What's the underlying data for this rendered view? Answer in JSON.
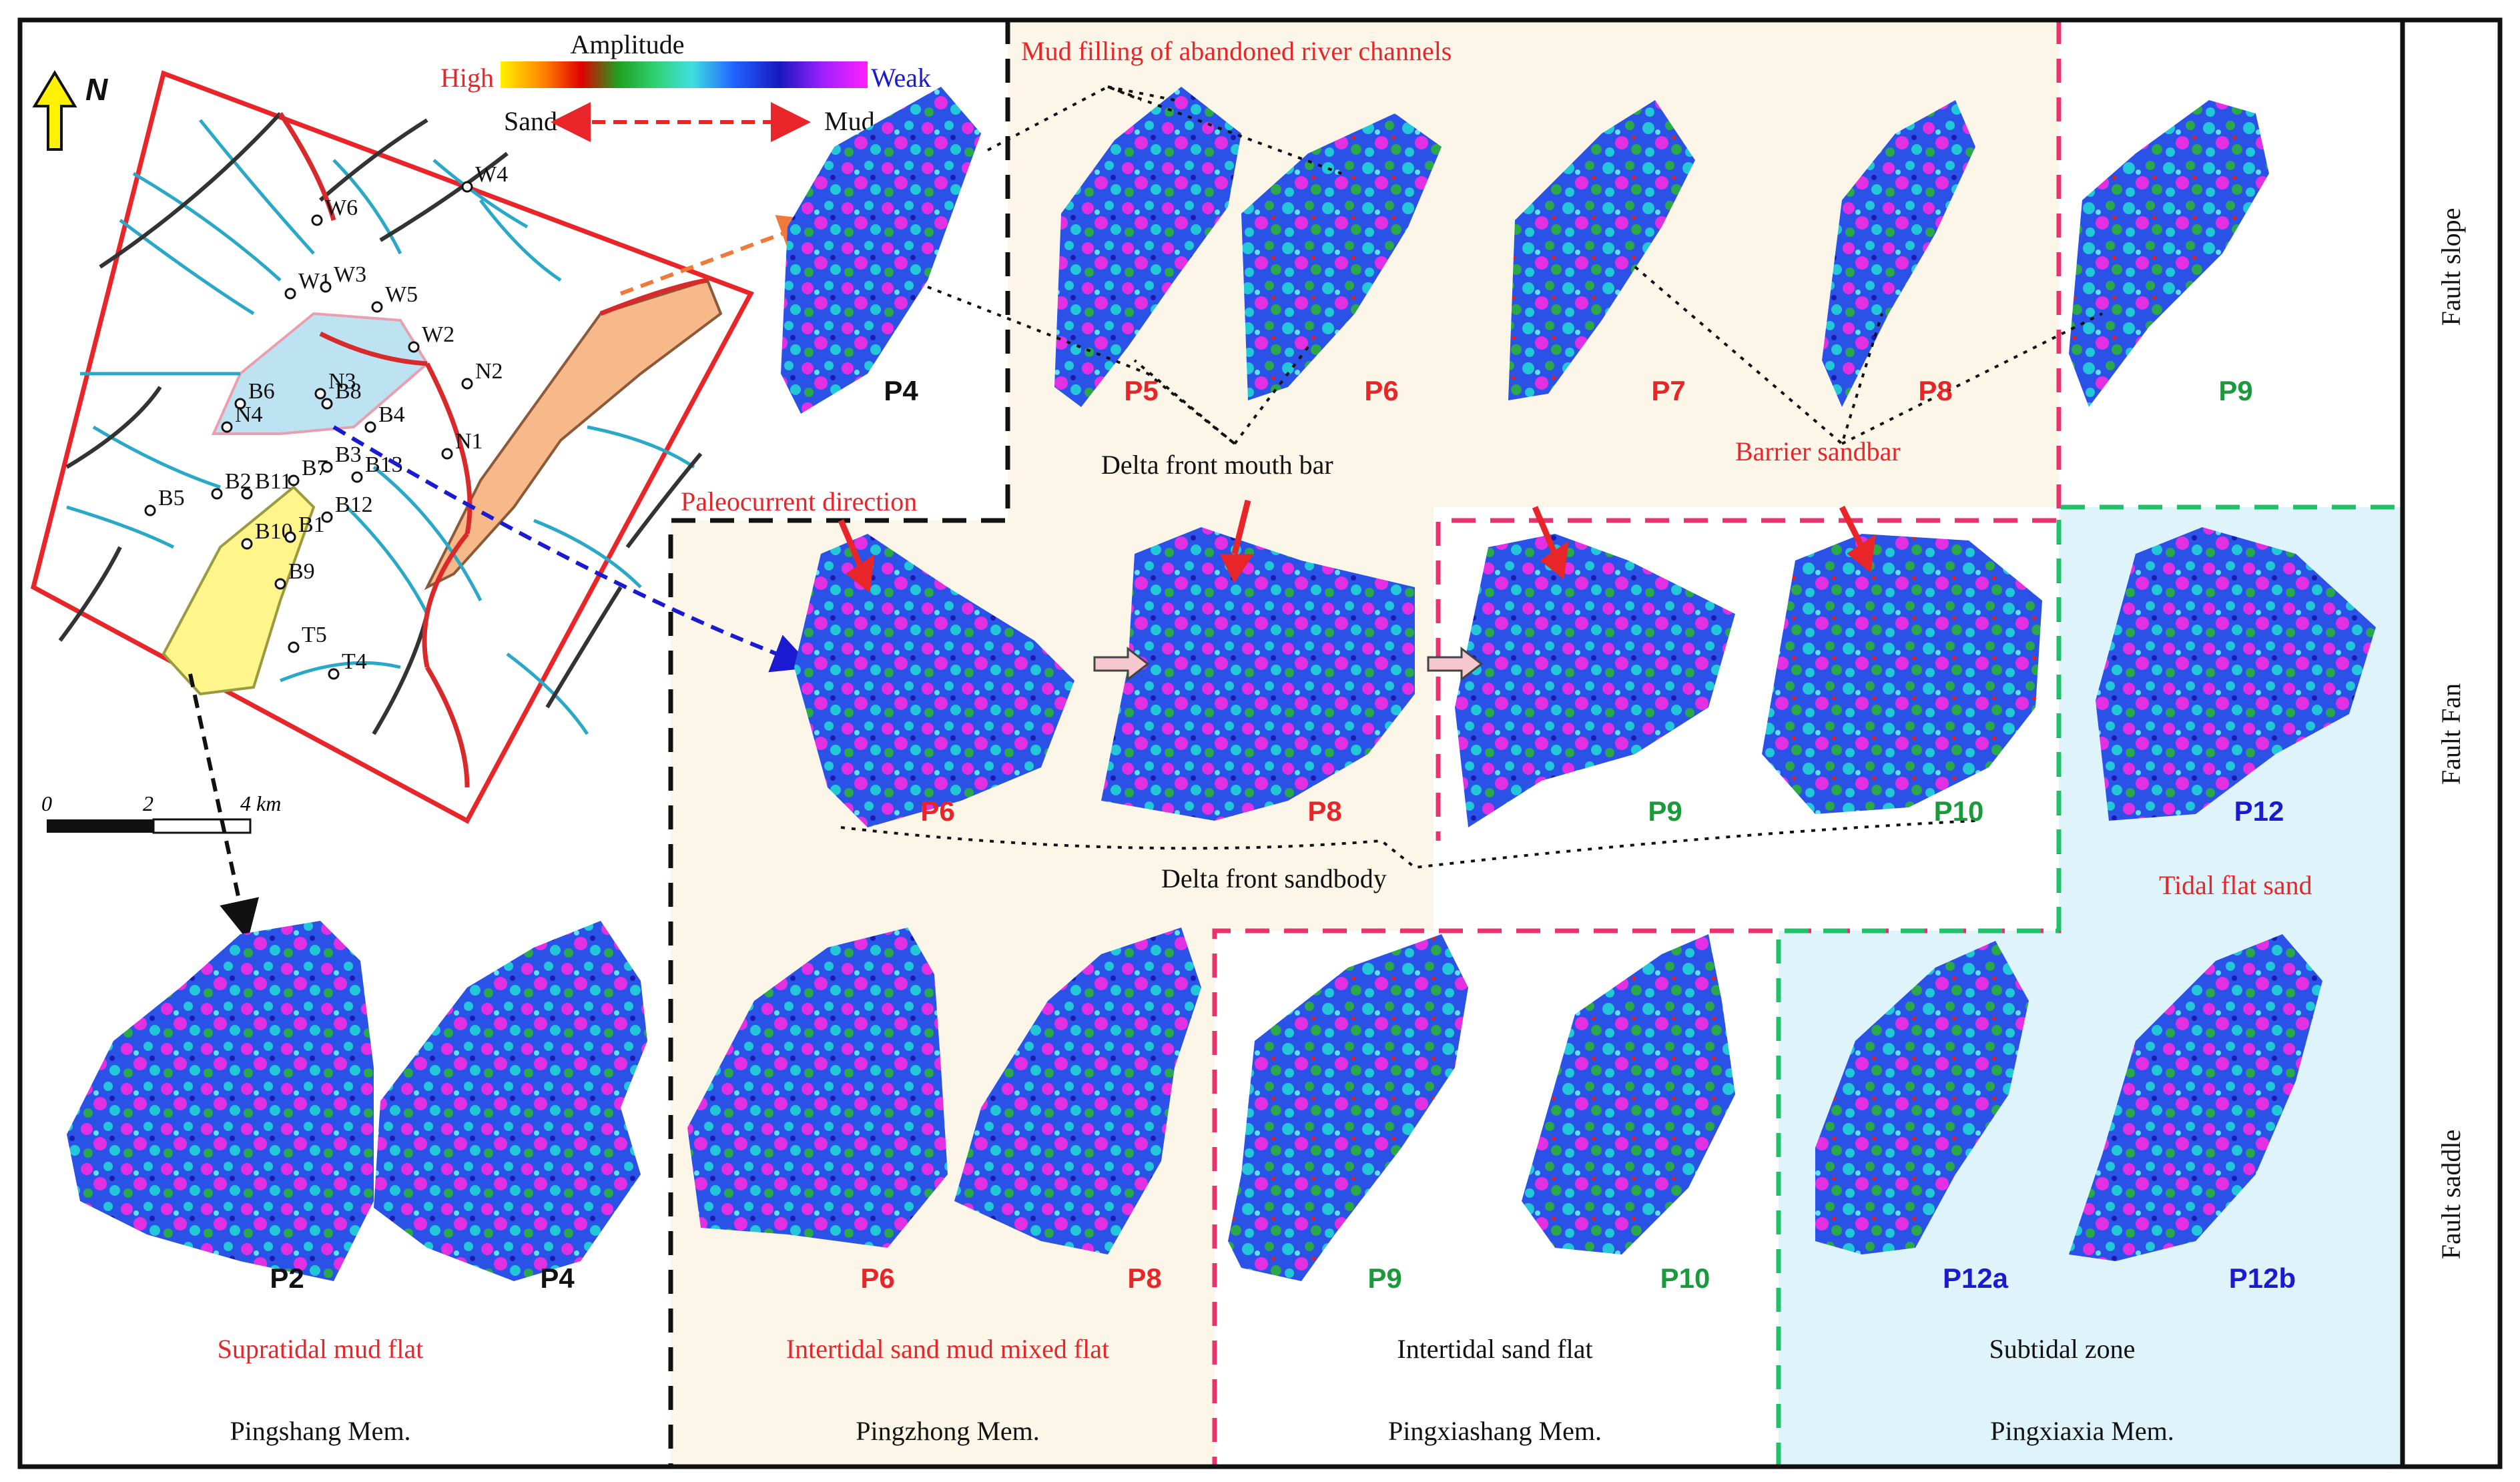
{
  "colors": {
    "red": "#e8262a",
    "green": "#1a9a3a",
    "blue": "#1a1ad0",
    "black": "#111111",
    "pink_dash": "#e8336e",
    "green_dash": "#22c06a",
    "beige": "#fbf6e8",
    "cyan": "#dff3fb"
  },
  "legend": {
    "north": "N",
    "amplitude": "Amplitude",
    "high": "High",
    "weak": "Weak",
    "sand": "Sand",
    "mud": "Mud",
    "scale_0": "0",
    "scale_2": "2",
    "scale_4": "4 km"
  },
  "map_wells": [
    "W4",
    "W6",
    "W1",
    "W3",
    "W5",
    "W2",
    "N3",
    "B6",
    "B8",
    "N2",
    "N4",
    "B4",
    "N1",
    "B2",
    "B11",
    "B7",
    "B3",
    "B13",
    "B5",
    "B12",
    "B10",
    "B1",
    "B9",
    "T5",
    "T4"
  ],
  "annotations": {
    "mud_filling": "Mud filling of abandoned river channels",
    "mouth_bar": "Delta front mouth bar",
    "barrier": "Barrier sandbar",
    "paleocurrent": "Paleocurrent direction",
    "delta_sandbody": "Delta front sandbody",
    "tidal_flat_sand": "Tidal flat sand"
  },
  "rows": {
    "top": [
      "P4",
      "P5",
      "P6",
      "P7",
      "P8",
      "P9"
    ],
    "middle": [
      "P6",
      "P8",
      "P9",
      "P10",
      "P12"
    ],
    "bottom": [
      "P2",
      "P4",
      "P6",
      "P8",
      "P9",
      "P10",
      "P12a",
      "P12b"
    ]
  },
  "facies": {
    "supratidal": "Supratidal mud flat",
    "intertidal_mixed": "Intertidal sand mud mixed flat",
    "intertidal_sand": "Intertidal  sand flat",
    "subtidal": "Subtidal zone"
  },
  "members": {
    "pingshang": "Pingshang Mem.",
    "pingzhong": "Pingzhong Mem.",
    "pingxiashang": "Pingxiashang Mem.",
    "pingxiaxia": "Pingxiaxia Mem."
  },
  "side_labels": {
    "slope": "Fault slope",
    "fan": "Fault Fan",
    "saddle": "Fault saddle"
  }
}
